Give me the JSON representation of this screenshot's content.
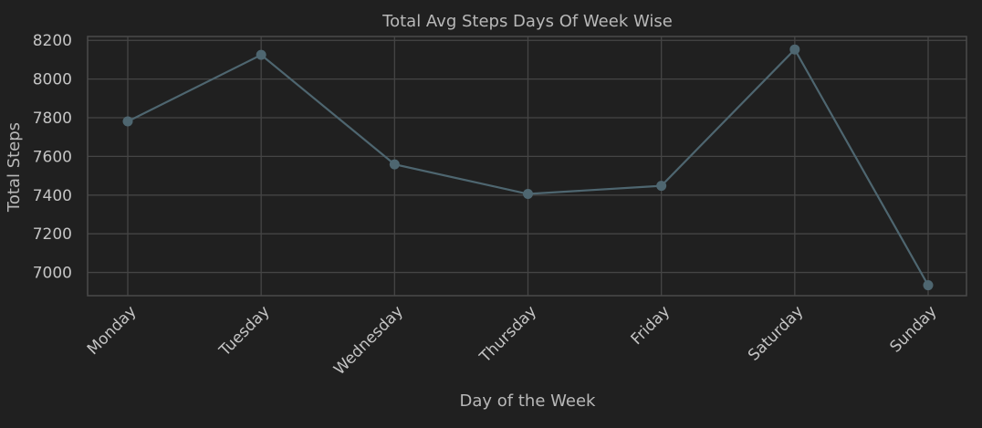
{
  "chart_data": {
    "type": "line",
    "title": "Total Avg Steps Days Of Week Wise",
    "xlabel": "Day of the Week",
    "ylabel": "Total Steps",
    "categories": [
      "Monday",
      "Tuesday",
      "Wednesday",
      "Thursday",
      "Friday",
      "Saturday",
      "Sunday"
    ],
    "series": [
      {
        "values": [
          7781,
          8125,
          7559,
          7406,
          7448,
          8153,
          6934
        ]
      }
    ],
    "ylim": [
      6880,
      8220
    ],
    "yticks": [
      "7000",
      "7200",
      "7400",
      "7600",
      "7800",
      "8000",
      "8200"
    ],
    "grid": true,
    "colors": {
      "line": "#4e6670",
      "marker": "#4e6670",
      "background": "#202020",
      "grid": "#454545"
    }
  }
}
